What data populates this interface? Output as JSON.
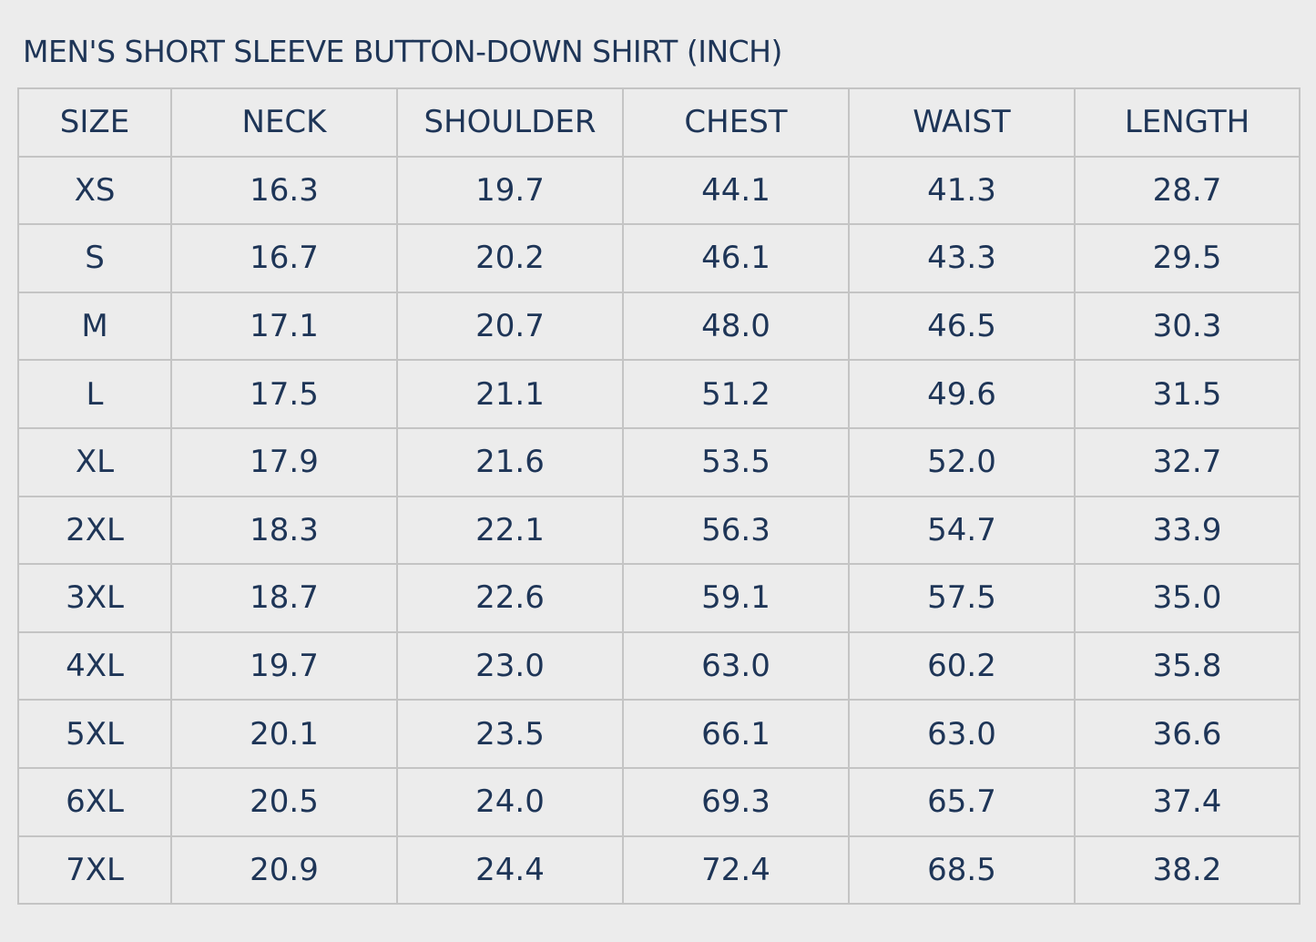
{
  "title": "MEN'S SHORT SLEEVE BUTTON-DOWN SHIRT (INCH)",
  "table": {
    "header": [
      "SIZE",
      "NECK",
      "SHOULDER",
      "CHEST",
      "WAIST",
      "LENGTH"
    ],
    "rows": [
      [
        "XS",
        "16.3",
        "19.7",
        "44.1",
        "41.3",
        "28.7"
      ],
      [
        "S",
        "16.7",
        "20.2",
        "46.1",
        "43.3",
        "29.5"
      ],
      [
        "M",
        "17.1",
        "20.7",
        "48.0",
        "46.5",
        "30.3"
      ],
      [
        "L",
        "17.5",
        "21.1",
        "51.2",
        "49.6",
        "31.5"
      ],
      [
        "XL",
        "17.9",
        "21.6",
        "53.5",
        "52.0",
        "32.7"
      ],
      [
        "2XL",
        "18.3",
        "22.1",
        "56.3",
        "54.7",
        "33.9"
      ],
      [
        "3XL",
        "18.7",
        "22.6",
        "59.1",
        "57.5",
        "35.0"
      ],
      [
        "4XL",
        "19.7",
        "23.0",
        "63.0",
        "60.2",
        "35.8"
      ],
      [
        "5XL",
        "20.1",
        "23.5",
        "66.1",
        "63.0",
        "36.6"
      ],
      [
        "6XL",
        "20.5",
        "24.0",
        "69.3",
        "65.7",
        "37.4"
      ],
      [
        "7XL",
        "20.9",
        "24.4",
        "72.4",
        "68.5",
        "38.2"
      ]
    ]
  }
}
